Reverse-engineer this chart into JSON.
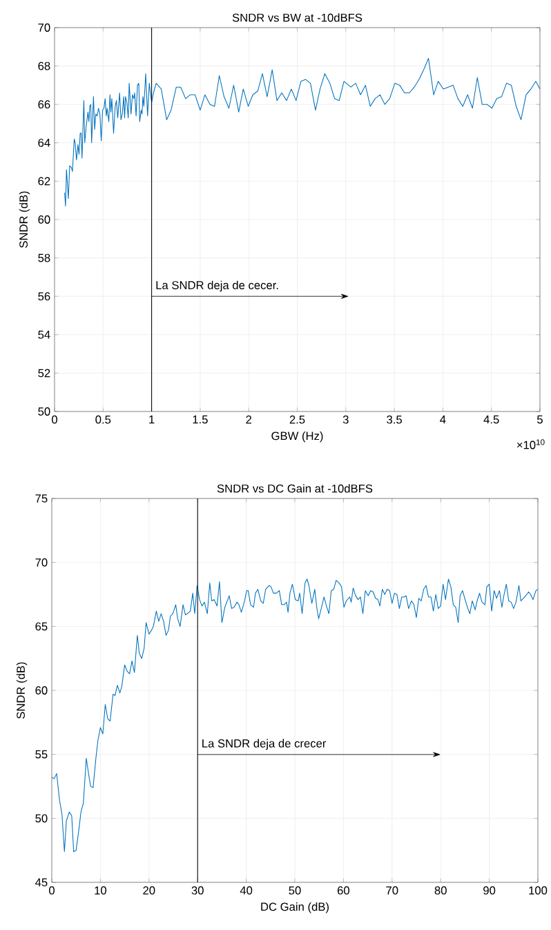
{
  "chart_data": [
    {
      "type": "line",
      "title": "SNDR vs BW at -10dBFS",
      "xlabel": "GBW (Hz)",
      "ylabel": "SNDR (dB)",
      "color": "#0072bd",
      "grid": true,
      "xlim": [
        0,
        5
      ],
      "ylim": [
        50,
        70
      ],
      "xticks": [
        0,
        0.5,
        1,
        1.5,
        2,
        2.5,
        3,
        3.5,
        4,
        4.5,
        5
      ],
      "yticks": [
        50,
        52,
        54,
        56,
        58,
        60,
        62,
        64,
        66,
        68,
        70
      ],
      "ref_lines": [
        {
          "axis": "x",
          "value": 1,
          "color": "#000000"
        }
      ],
      "annotations": [
        "La SNDR deja de cecer.",
        "×10$^{10}$"
      ],
      "x": [
        0.104,
        0.113,
        0.123,
        0.142,
        0.156,
        0.175,
        0.184,
        0.203,
        0.212,
        0.226,
        0.241,
        0.252,
        0.264,
        0.274,
        0.283,
        0.302,
        0.311,
        0.325,
        0.344,
        0.354,
        0.363,
        0.373,
        0.382,
        0.401,
        0.413,
        0.425,
        0.439,
        0.453,
        0.467,
        0.481,
        0.495,
        0.509,
        0.521,
        0.533,
        0.542,
        0.559,
        0.571,
        0.58,
        0.59,
        0.608,
        0.625,
        0.637,
        0.651,
        0.67,
        0.684,
        0.698,
        0.712,
        0.722,
        0.731,
        0.745,
        0.759,
        0.769,
        0.788,
        0.802,
        0.816,
        0.825,
        0.84,
        0.854,
        0.868,
        0.877,
        0.892,
        0.901,
        0.91,
        0.92,
        0.939,
        0.958,
        0.976,
        1.0,
        1.019,
        1.047,
        1.099,
        1.155,
        1.2,
        1.254,
        1.3,
        1.35,
        1.397,
        1.448,
        1.5,
        1.549,
        1.601,
        1.648,
        1.697,
        1.746,
        1.796,
        1.845,
        1.897,
        1.944,
        1.995,
        2.042,
        2.094,
        2.141,
        2.19,
        2.242,
        2.291,
        2.34,
        2.39,
        2.439,
        2.488,
        2.538,
        2.587,
        2.636,
        2.688,
        2.735,
        2.784,
        2.836,
        2.885,
        2.932,
        2.981,
        3.052,
        3.102,
        3.152,
        3.202,
        3.252,
        3.302,
        3.352,
        3.402,
        3.452,
        3.505,
        3.555,
        3.605,
        3.655,
        3.705,
        3.755,
        3.802,
        3.852,
        3.905,
        3.952,
        4.005,
        4.055,
        4.105,
        4.155,
        4.205,
        4.255,
        4.305,
        4.355,
        4.405,
        4.455,
        4.505,
        4.555,
        4.605,
        4.655,
        4.705,
        4.755,
        4.805,
        4.857,
        4.907,
        4.957,
        5.0
      ],
      "values": [
        61.4,
        60.7,
        62.6,
        61.1,
        62.8,
        62.7,
        62.5,
        64.2,
        64.0,
        63.1,
        63.9,
        63.4,
        64.5,
        64.5,
        63.2,
        66.2,
        64.0,
        64.8,
        65.6,
        65.1,
        65.9,
        66.0,
        64.0,
        66.4,
        64.7,
        65.5,
        65.4,
        65.8,
        65.5,
        64.1,
        65.7,
        65.8,
        66.3,
        65.4,
        65.8,
        65.1,
        66.5,
        65.6,
        66.3,
        64.5,
        65.9,
        66.2,
        65.3,
        66.6,
        65.2,
        65.5,
        66.4,
        65.3,
        66.4,
        66.1,
        65.3,
        67.1,
        65.5,
        66.5,
        66.3,
        66.6,
        65.4,
        67.0,
        67.1,
        65.1,
        65.7,
        65.5,
        66.4,
        65.9,
        67.6,
        65.4,
        67.1,
        66.1,
        66.6,
        67.1,
        66.8,
        65.2,
        65.7,
        66.9,
        66.9,
        66.3,
        66.5,
        66.5,
        65.7,
        66.5,
        66.0,
        65.9,
        67.5,
        66.4,
        65.8,
        67.0,
        65.6,
        66.8,
        65.9,
        66.5,
        66.7,
        67.6,
        66.4,
        67.8,
        66.2,
        66.6,
        66.2,
        66.8,
        66.2,
        67.2,
        67.3,
        67.1,
        65.7,
        66.8,
        67.6,
        67.1,
        66.3,
        66.2,
        67.2,
        66.9,
        67.1,
        66.5,
        67.0,
        65.9,
        66.3,
        66.5,
        66.0,
        66.3,
        67.1,
        67.0,
        66.6,
        66.6,
        66.9,
        67.3,
        67.8,
        68.4,
        66.5,
        67.2,
        66.8,
        66.9,
        67.0,
        66.3,
        65.9,
        66.5,
        65.8,
        67.4,
        66.0,
        66.0,
        65.8,
        66.3,
        66.4,
        67.1,
        67.0,
        65.9,
        65.2,
        66.5,
        66.8,
        67.2,
        66.8
      ]
    },
    {
      "type": "line",
      "title": "SNDR vs DC Gain at -10dBFS",
      "xlabel": "DC Gain (dB)",
      "ylabel": "SNDR (dB)",
      "color": "#0072bd",
      "grid": true,
      "xlim": [
        0,
        100
      ],
      "ylim": [
        45,
        75
      ],
      "xticks": [
        0,
        10,
        20,
        30,
        40,
        50,
        60,
        70,
        80,
        90,
        100
      ],
      "yticks": [
        45,
        50,
        55,
        60,
        65,
        70,
        75
      ],
      "ref_lines": [
        {
          "axis": "x",
          "value": 30,
          "color": "#000000"
        }
      ],
      "annotations": [
        "La SNDR deja de crecer"
      ],
      "x": [
        0,
        0.5,
        1.0,
        1.6,
        2.1,
        2.6,
        3.0,
        3.6,
        4.1,
        4.5,
        5.0,
        5.6,
        6.0,
        6.5,
        7.1,
        7.6,
        8.0,
        8.5,
        9.1,
        9.5,
        10.0,
        10.5,
        11.0,
        11.5,
        12.0,
        12.6,
        13.0,
        13.5,
        14.0,
        14.4,
        15.0,
        15.5,
        16.0,
        16.5,
        17.0,
        17.6,
        18.0,
        18.5,
        19.0,
        19.4,
        20.0,
        20.5,
        20.9,
        21.5,
        22.0,
        22.5,
        23.0,
        23.5,
        24.0,
        24.4,
        24.9,
        25.5,
        25.9,
        26.4,
        27.0,
        27.5,
        27.9,
        28.5,
        29.0,
        29.4,
        29.9,
        30.4,
        30.9,
        31.4,
        32.0,
        32.5,
        32.9,
        33.4,
        34.0,
        34.5,
        35.0,
        35.6,
        36.5,
        37.0,
        37.5,
        38.1,
        38.5,
        39.0,
        39.6,
        40.1,
        40.4,
        40.9,
        41.5,
        41.9,
        42.4,
        43.0,
        43.5,
        44.0,
        44.7,
        45.1,
        45.6,
        46.2,
        46.8,
        47.3,
        47.8,
        48.3,
        48.6,
        49.0,
        49.5,
        50.1,
        50.7,
        51.0,
        51.5,
        52.1,
        52.5,
        52.9,
        53.5,
        54.1,
        54.5,
        54.9,
        55.5,
        56.0,
        56.5,
        57.0,
        57.5,
        58.0,
        58.5,
        59.1,
        59.6,
        60.1,
        60.6,
        61.3,
        61.6,
        62.0,
        62.5,
        63.0,
        63.5,
        64.0,
        64.5,
        65.1,
        65.6,
        66.1,
        66.6,
        67.1,
        67.5,
        68.0,
        68.5,
        69.0,
        69.5,
        70.0,
        70.5,
        71.0,
        71.5,
        72.0,
        72.5,
        72.9,
        73.4,
        74.0,
        74.5,
        75.0,
        75.5,
        76.0,
        76.5,
        77.0,
        77.5,
        78.0,
        78.5,
        79.0,
        79.5,
        80.0,
        80.5,
        81.0,
        81.6,
        82.1,
        82.6,
        83.1,
        83.6,
        84.0,
        84.5,
        85.1,
        85.6,
        86.0,
        86.5,
        87.1,
        87.5,
        88.0,
        88.5,
        89.1,
        89.5,
        90.0,
        90.5,
        91.0,
        91.5,
        92.1,
        92.6,
        93.0,
        93.5,
        94.0,
        94.5,
        95.0,
        95.5,
        96.1,
        96.5,
        97.0,
        97.5,
        98.1,
        98.5,
        99.0,
        99.6,
        100
      ],
      "values": [
        53.2,
        53.1,
        53.5,
        51.4,
        50.3,
        47.4,
        49.8,
        50.5,
        50.2,
        47.4,
        47.5,
        49.2,
        50.5,
        51.2,
        54.7,
        53.4,
        52.5,
        52.4,
        54.8,
        56.1,
        57.1,
        56.6,
        58.9,
        57.8,
        57.6,
        59.7,
        59.6,
        60.4,
        59.8,
        60.3,
        62.0,
        61.5,
        61.3,
        62.3,
        61.4,
        64.3,
        62.9,
        62.5,
        63.3,
        65.3,
        64.4,
        64.7,
        65.0,
        66.2,
        65.4,
        66.0,
        65.4,
        64.3,
        64.7,
        65.8,
        66.0,
        66.7,
        65.6,
        65.0,
        66.7,
        65.9,
        66.0,
        66.2,
        67.6,
        66.0,
        68.2,
        67.1,
        66.6,
        66.9,
        66.0,
        68.4,
        67.0,
        67.1,
        66.6,
        68.5,
        65.3,
        66.5,
        67.4,
        66.4,
        66.5,
        66.9,
        66.7,
        66.1,
        66.9,
        67.8,
        67.8,
        66.7,
        66.5,
        67.6,
        67.9,
        67.0,
        66.8,
        67.9,
        68.2,
        68.1,
        67.6,
        67.6,
        67.8,
        66.7,
        66.7,
        66.9,
        66.1,
        67.6,
        68.3,
        67.1,
        67.0,
        67.6,
        66.0,
        68.4,
        68.7,
        68.2,
        66.8,
        67.9,
        66.5,
        65.6,
        66.5,
        67.3,
        66.6,
        66.0,
        67.8,
        67.9,
        68.6,
        68.4,
        68.1,
        66.5,
        67.0,
        67.3,
        66.9,
        68.0,
        67.4,
        67.1,
        67.3,
        66.0,
        67.8,
        67.4,
        67.8,
        67.7,
        67.2,
        67.1,
        66.6,
        67.9,
        67.5,
        67.9,
        67.8,
        66.8,
        67.6,
        67.5,
        66.4,
        67.3,
        67.3,
        67.4,
        66.4,
        67.0,
        66.7,
        65.7,
        67.2,
        67.0,
        67.9,
        68.2,
        67.3,
        67.3,
        66.2,
        67.5,
        66.4,
        66.6,
        68.3,
        67.1,
        68.7,
        68.1,
        66.7,
        66.5,
        65.3,
        67.4,
        67.8,
        67.0,
        66.4,
        66.0,
        67.0,
        66.3,
        67.0,
        67.6,
        66.9,
        66.7,
        68.1,
        68.3,
        66.2,
        67.8,
        67.2,
        67.8,
        66.5,
        67.4,
        68.3,
        67.0,
        66.9,
        66.4,
        66.9,
        68.2,
        67.0,
        67.2,
        67.4,
        67.7,
        67.5,
        67.1,
        67.8,
        67.9
      ]
    }
  ]
}
